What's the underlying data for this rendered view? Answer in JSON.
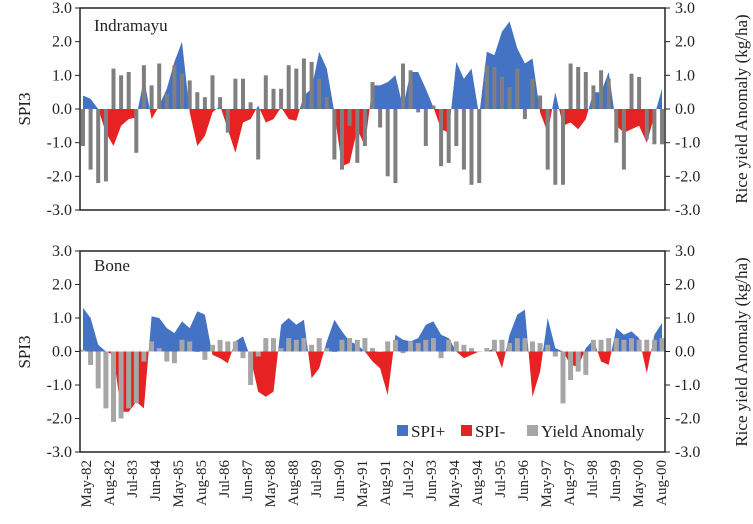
{
  "chart_data": [
    {
      "type": "area",
      "title": "Indramayu",
      "ylabel": "SPI3",
      "y2label": "Rice yield Anomaly (kg/ha)",
      "ylim": [
        -3.0,
        3.0
      ],
      "y2lim": [
        -3.0,
        3.0
      ],
      "yticks": [
        "3.0",
        "2.0",
        "1.0",
        "0.0",
        "-1.0",
        "-2.0",
        "-3.0"
      ],
      "spi": [
        0.4,
        0.3,
        0.0,
        -0.7,
        -1.1,
        -0.5,
        -0.3,
        -0.25,
        0.9,
        -0.3,
        0.1,
        0.6,
        1.4,
        2.0,
        -0.1,
        -1.1,
        -0.8,
        -0.1,
        0.1,
        -0.6,
        -1.3,
        -0.4,
        -0.3,
        0.1,
        -0.4,
        -0.3,
        0.05,
        -0.3,
        -0.35,
        0.4,
        0.6,
        1.7,
        1.2,
        -0.1,
        -1.7,
        -1.6,
        -0.6,
        -1.1,
        0.7,
        0.7,
        0.8,
        1.0,
        0.05,
        1.1,
        1.1,
        0.6,
        0.05,
        -0.6,
        -0.7,
        1.4,
        0.9,
        1.2,
        -0.2,
        1.7,
        1.6,
        2.3,
        2.6,
        1.8,
        1.35,
        1.5,
        -0.1,
        -0.7,
        0.5,
        -0.5,
        -0.4,
        -0.6,
        -0.3,
        0.5,
        0.5,
        1.1,
        -0.5,
        -0.7,
        -0.6,
        -0.5,
        -1.0,
        -0.2,
        0.6
      ],
      "yield_anomaly": [
        -1.1,
        -1.8,
        -2.2,
        -2.15,
        1.2,
        1.0,
        1.1,
        -1.3,
        1.3,
        0.7,
        1.35,
        0.45,
        1.3,
        1.05,
        0.85,
        0.5,
        0.35,
        1.0,
        0.35,
        -0.7,
        0.9,
        0.9,
        0.2,
        -1.5,
        1.0,
        0.6,
        0.6,
        1.3,
        1.2,
        1.5,
        1.4,
        0.9,
        0.35,
        -1.5,
        -1.8,
        -0.5,
        -1.6,
        -1.1,
        0.8,
        -0.55,
        -2.0,
        -2.2,
        1.35,
        1.15,
        -0.1,
        -1.1,
        0.1,
        -1.7,
        -1.6,
        -1.1,
        -1.8,
        -2.25,
        -2.2,
        1.3,
        1.25,
        0.95,
        0.65,
        1.2,
        -0.3,
        0.9,
        0.4,
        -1.8,
        -2.25,
        -2.25,
        1.35,
        1.25,
        1.1,
        0.7,
        1.15,
        0.9,
        -1.0,
        -1.8,
        1.05,
        0.95,
        -0.9,
        -1.05,
        -1.05
      ]
    },
    {
      "type": "area",
      "title": "Bone",
      "ylabel": "SPI3",
      "y2label": "Rice yield Anomaly (kg/ha)",
      "ylim": [
        -3.0,
        3.0
      ],
      "y2lim": [
        -3.0,
        3.0
      ],
      "yticks": [
        "3.0",
        "2.0",
        "1.0",
        "0.0",
        "-1.0",
        "-2.0",
        "-3.0"
      ],
      "spi": [
        1.3,
        1.0,
        0.2,
        0.0,
        -0.1,
        -1.8,
        -1.8,
        -1.5,
        -1.7,
        1.05,
        1.0,
        0.7,
        0.55,
        0.9,
        0.7,
        1.2,
        1.1,
        -0.1,
        -0.2,
        -0.35,
        0.3,
        0.45,
        -0.2,
        -1.2,
        -1.35,
        -1.2,
        0.8,
        1.0,
        0.8,
        0.95,
        -0.8,
        -0.5,
        0.3,
        0.95,
        0.6,
        0.3,
        0.2,
        0.0,
        -0.3,
        -0.5,
        -1.3,
        0.5,
        0.35,
        0.3,
        0.4,
        0.8,
        0.9,
        0.5,
        0.4,
        0.0,
        -0.2,
        -0.1,
        0.0,
        0.0,
        0.1,
        -0.5,
        0.5,
        1.1,
        1.25,
        -1.35,
        -0.6,
        1.0,
        0.1,
        0.0,
        -0.4,
        -0.45,
        0.1,
        0.35,
        -0.3,
        -0.4,
        0.7,
        0.5,
        0.6,
        0.4,
        -0.65,
        0.5,
        0.85
      ],
      "yield_anomaly": [
        0.05,
        -0.4,
        -1.1,
        -1.7,
        -2.1,
        -2.0,
        -1.7,
        -1.55,
        -0.3,
        0.3,
        0.1,
        -0.3,
        -0.35,
        0.35,
        0.3,
        0.0,
        -0.25,
        0.2,
        0.35,
        0.3,
        0.3,
        -0.2,
        -1.0,
        -0.15,
        0.4,
        0.4,
        0.1,
        0.4,
        0.35,
        0.4,
        0.2,
        0.4,
        0.1,
        0.0,
        0.35,
        0.4,
        0.35,
        0.4,
        0.1,
        0.0,
        0.3,
        0.35,
        -0.05,
        0.3,
        0.25,
        0.35,
        0.4,
        -0.2,
        0.35,
        0.3,
        0.2,
        0.1,
        0.0,
        0.1,
        0.35,
        0.35,
        0.25,
        0.4,
        0.4,
        0.3,
        0.25,
        0.2,
        -0.15,
        -1.55,
        -0.85,
        -0.6,
        -0.7,
        0.35,
        0.35,
        0.4,
        0.4,
        0.35,
        0.4,
        0.35,
        0.35,
        0.35,
        0.4
      ]
    }
  ],
  "x_ticks": [
    "May-82",
    "Aug-82",
    "Jul-83",
    "Jun-84",
    "May-85",
    "Aug-85",
    "Jul-86",
    "Jun-87",
    "May-88",
    "Aug-88",
    "Jul-89",
    "Jun-90",
    "May-91",
    "Aug-91",
    "Jul-92",
    "Jun-93",
    "May-94",
    "Aug-94",
    "Jul-95",
    "Jun-96",
    "May-97",
    "Aug-97",
    "Jul-98",
    "Jun-99",
    "May-00",
    "Aug-00"
  ],
  "legend": {
    "position": "bottom-right",
    "items": [
      {
        "label": "SPI+",
        "color": "#4472C4"
      },
      {
        "label": "SPI-",
        "color": "#E62222"
      },
      {
        "label": "Yield Anomaly",
        "color": "#8C8C8C"
      }
    ]
  },
  "colors": {
    "spi_pos": "#4472C4",
    "spi_neg": "#E62222",
    "yield_top": "#7F7F7F",
    "yield_bottom": "#A6A6A6"
  }
}
